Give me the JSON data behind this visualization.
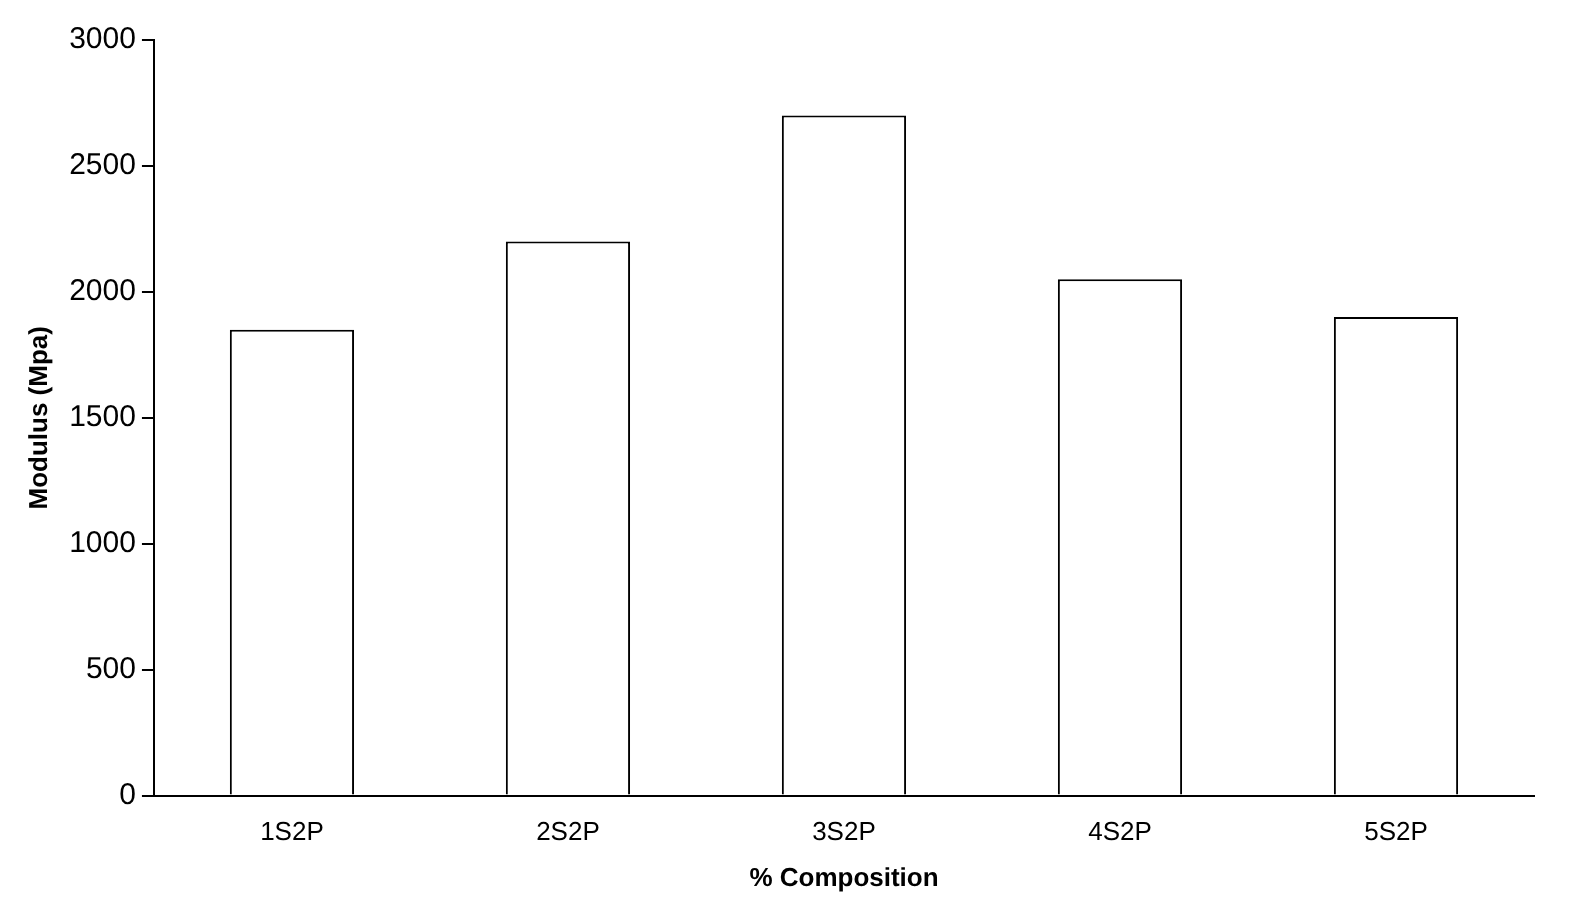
{
  "chart_data": {
    "type": "bar",
    "xlabel": "% Composition",
    "ylabel": "Modulus (Mpa)",
    "categories": [
      "1S2P",
      "2S2P",
      "3S2P",
      "4S2P",
      "5S2P"
    ],
    "values": [
      1850,
      2200,
      2700,
      2050,
      1900
    ],
    "color": "#ffffff",
    "ylim": [
      0,
      3000
    ],
    "yticks": [
      0,
      500,
      1000,
      1500,
      2000,
      2500,
      3000
    ],
    "grid": false,
    "legend": false
  }
}
